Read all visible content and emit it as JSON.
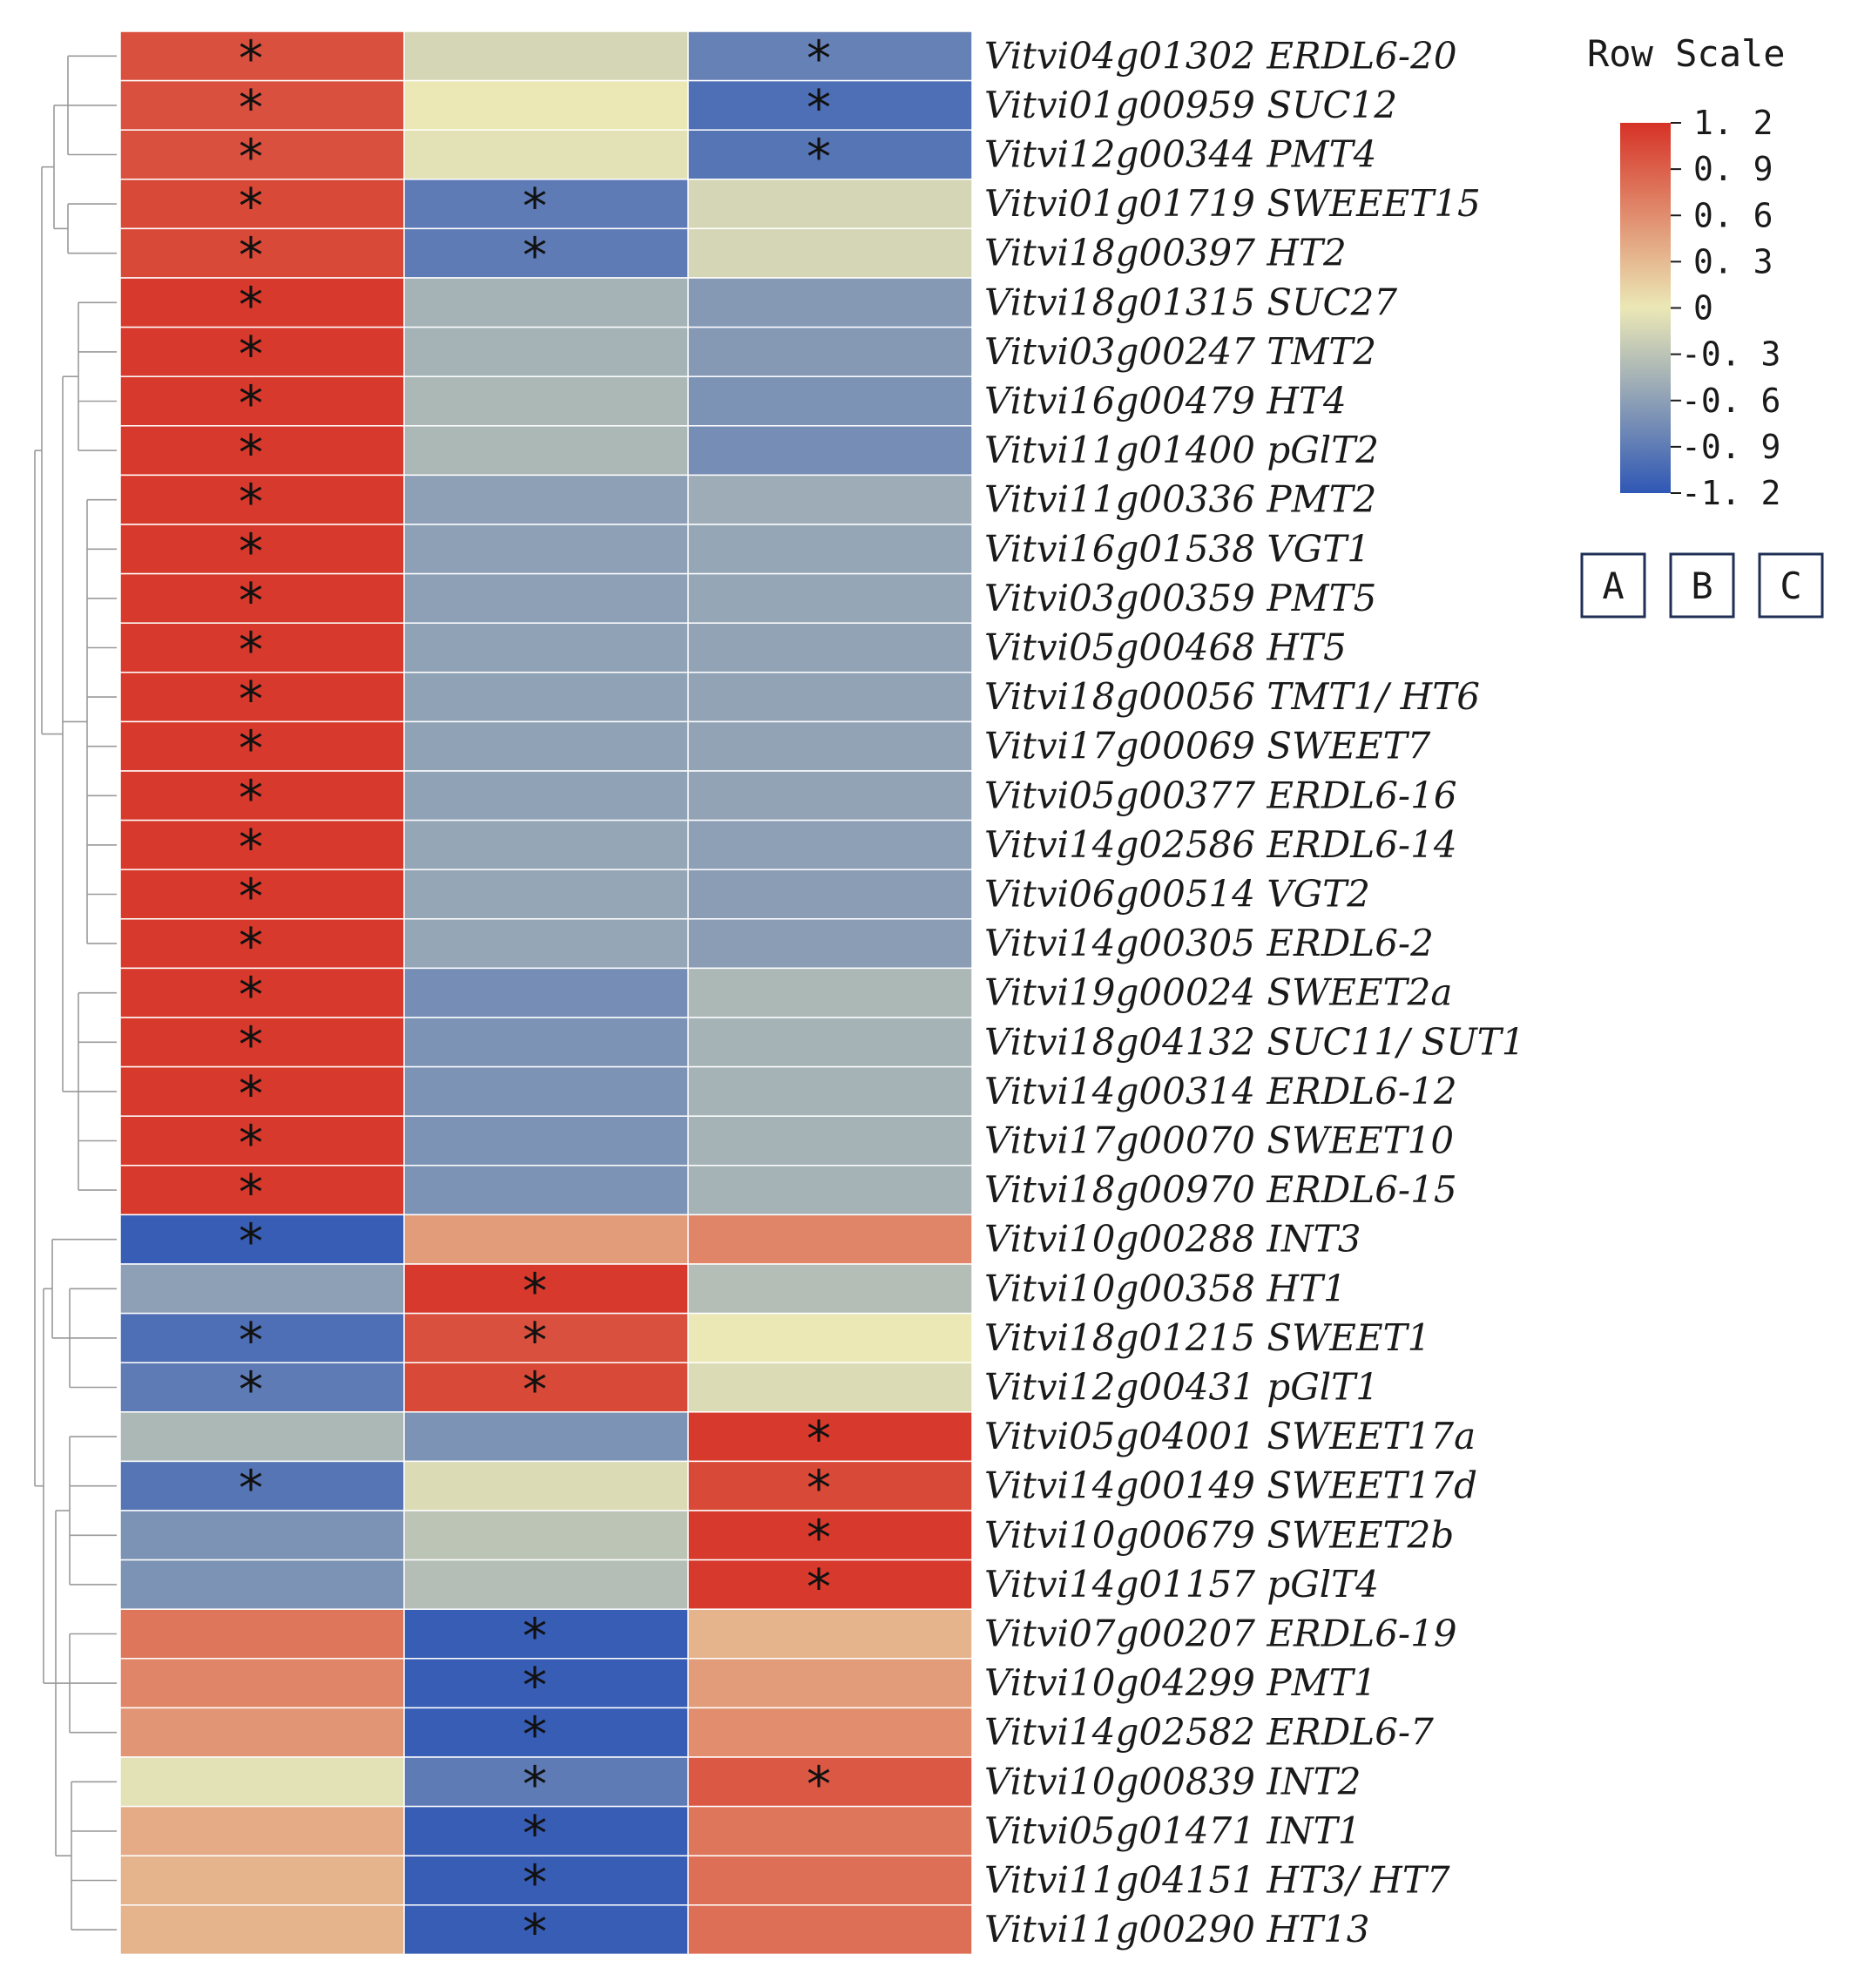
{
  "chart_data": {
    "type": "heatmap",
    "title": "",
    "legend_title": "Row Scale",
    "scale_min": -1.2,
    "scale_max": 1.2,
    "colors": {
      "low": "#2f57b5",
      "mid": "#ebe8b6",
      "high": "#d63226"
    },
    "legend_ticks": [
      "1. 2",
      "0. 9",
      "0. 6",
      "0. 3",
      "0",
      "-0. 3",
      "-0. 6",
      "-0. 9",
      "-1. 2"
    ],
    "legend_tick_values": [
      1.2,
      0.9,
      0.6,
      0.3,
      0,
      -0.3,
      -0.6,
      -0.9,
      -1.2
    ],
    "columns": [
      "A",
      "B",
      "C"
    ],
    "rows": [
      {
        "label": "Vitvi04g01302 ERDL6-20",
        "values": [
          1.0,
          -0.15,
          -0.85
        ],
        "sig": [
          true,
          false,
          true
        ]
      },
      {
        "label": "Vitvi01g00959 SUC12",
        "values": [
          1.0,
          0.0,
          -1.0
        ],
        "sig": [
          true,
          false,
          true
        ]
      },
      {
        "label": "Vitvi12g00344 PMT4",
        "values": [
          1.0,
          -0.05,
          -0.95
        ],
        "sig": [
          true,
          false,
          true
        ]
      },
      {
        "label": "Vitvi01g01719 SWEEET15",
        "values": [
          1.05,
          -0.9,
          -0.15
        ],
        "sig": [
          true,
          true,
          false
        ]
      },
      {
        "label": "Vitvi18g00397 HT2",
        "values": [
          1.05,
          -0.9,
          -0.15
        ],
        "sig": [
          true,
          true,
          false
        ]
      },
      {
        "label": "Vitvi18g01315 SUC27",
        "values": [
          1.15,
          -0.45,
          -0.65
        ],
        "sig": [
          true,
          false,
          false
        ]
      },
      {
        "label": "Vitvi03g00247 TMT2",
        "values": [
          1.15,
          -0.45,
          -0.65
        ],
        "sig": [
          true,
          false,
          false
        ]
      },
      {
        "label": "Vitvi16g00479 HT4",
        "values": [
          1.15,
          -0.4,
          -0.7
        ],
        "sig": [
          true,
          false,
          false
        ]
      },
      {
        "label": "Vitvi11g01400 pGlT2",
        "values": [
          1.15,
          -0.4,
          -0.75
        ],
        "sig": [
          true,
          false,
          false
        ]
      },
      {
        "label": "Vitvi11g00336 PMT2",
        "values": [
          1.15,
          -0.6,
          -0.5
        ],
        "sig": [
          true,
          false,
          false
        ]
      },
      {
        "label": "Vitvi16g01538 VGT1",
        "values": [
          1.15,
          -0.6,
          -0.55
        ],
        "sig": [
          true,
          false,
          false
        ]
      },
      {
        "label": "Vitvi03g00359 PMT5",
        "values": [
          1.15,
          -0.6,
          -0.55
        ],
        "sig": [
          true,
          false,
          false
        ]
      },
      {
        "label": "Vitvi05g00468 HT5",
        "values": [
          1.15,
          -0.58,
          -0.57
        ],
        "sig": [
          true,
          false,
          false
        ]
      },
      {
        "label": "Vitvi18g00056 TMT1/ HT6",
        "values": [
          1.15,
          -0.58,
          -0.57
        ],
        "sig": [
          true,
          false,
          false
        ]
      },
      {
        "label": "Vitvi17g00069 SWEET7",
        "values": [
          1.15,
          -0.58,
          -0.57
        ],
        "sig": [
          true,
          false,
          false
        ]
      },
      {
        "label": "Vitvi05g00377 ERDL6-16",
        "values": [
          1.15,
          -0.58,
          -0.57
        ],
        "sig": [
          true,
          false,
          false
        ]
      },
      {
        "label": "Vitvi14g02586 ERDL6-14",
        "values": [
          1.15,
          -0.55,
          -0.6
        ],
        "sig": [
          true,
          false,
          false
        ]
      },
      {
        "label": "Vitvi06g00514 VGT2",
        "values": [
          1.15,
          -0.55,
          -0.62
        ],
        "sig": [
          true,
          false,
          false
        ]
      },
      {
        "label": "Vitvi14g00305 ERDL6-2",
        "values": [
          1.15,
          -0.55,
          -0.62
        ],
        "sig": [
          true,
          false,
          false
        ]
      },
      {
        "label": "Vitvi19g00024 SWEET2a",
        "values": [
          1.15,
          -0.75,
          -0.4
        ],
        "sig": [
          true,
          false,
          false
        ]
      },
      {
        "label": "Vitvi18g04132 SUC11/ SUT1",
        "values": [
          1.15,
          -0.7,
          -0.45
        ],
        "sig": [
          true,
          false,
          false
        ]
      },
      {
        "label": "Vitvi14g00314 ERDL6-12",
        "values": [
          1.15,
          -0.7,
          -0.45
        ],
        "sig": [
          true,
          false,
          false
        ]
      },
      {
        "label": "Vitvi17g00070 SWEET10",
        "values": [
          1.15,
          -0.7,
          -0.45
        ],
        "sig": [
          true,
          false,
          false
        ]
      },
      {
        "label": "Vitvi18g00970 ERDL6-15",
        "values": [
          1.15,
          -0.7,
          -0.45
        ],
        "sig": [
          true,
          false,
          false
        ]
      },
      {
        "label": "Vitvi10g00288 INT3",
        "values": [
          -1.15,
          0.5,
          0.65
        ],
        "sig": [
          true,
          false,
          false
        ]
      },
      {
        "label": "Vitvi10g00358 HT1",
        "values": [
          -0.6,
          1.15,
          -0.35
        ],
        "sig": [
          false,
          true,
          false
        ]
      },
      {
        "label": "Vitvi18g01215 SWEET1",
        "values": [
          -1.0,
          1.0,
          0.0
        ],
        "sig": [
          true,
          true,
          false
        ]
      },
      {
        "label": "Vitvi12g00431 pGlT1",
        "values": [
          -0.9,
          1.05,
          -0.1
        ],
        "sig": [
          true,
          true,
          false
        ]
      },
      {
        "label": "Vitvi05g04001 SWEET17a",
        "values": [
          -0.4,
          -0.7,
          1.15
        ],
        "sig": [
          false,
          false,
          true
        ]
      },
      {
        "label": "Vitvi14g00149 SWEET17d",
        "values": [
          -0.95,
          -0.1,
          1.05
        ],
        "sig": [
          true,
          false,
          true
        ]
      },
      {
        "label": "Vitvi10g00679 SWEET2b",
        "values": [
          -0.7,
          -0.3,
          1.15
        ],
        "sig": [
          false,
          false,
          true
        ]
      },
      {
        "label": "Vitvi14g01157 pGlT4",
        "values": [
          -0.7,
          -0.35,
          1.15
        ],
        "sig": [
          false,
          false,
          true
        ]
      },
      {
        "label": "Vitvi07g00207 ERDL6-19",
        "values": [
          0.75,
          -1.15,
          0.35
        ],
        "sig": [
          false,
          true,
          false
        ]
      },
      {
        "label": "Vitvi10g04299 PMT1",
        "values": [
          0.65,
          -1.15,
          0.5
        ],
        "sig": [
          false,
          true,
          false
        ]
      },
      {
        "label": "Vitvi14g02582 ERDL6-7",
        "values": [
          0.55,
          -1.15,
          0.6
        ],
        "sig": [
          false,
          true,
          false
        ]
      },
      {
        "label": "Vitvi10g00839 INT2",
        "values": [
          -0.05,
          -0.9,
          0.95
        ],
        "sig": [
          false,
          true,
          true
        ]
      },
      {
        "label": "Vitvi05g01471 INT1",
        "values": [
          0.4,
          -1.15,
          0.75
        ],
        "sig": [
          false,
          true,
          false
        ]
      },
      {
        "label": "Vitvi11g04151 HT3/ HT7",
        "values": [
          0.35,
          -1.15,
          0.8
        ],
        "sig": [
          false,
          true,
          false
        ]
      },
      {
        "label": "Vitvi11g00290 HT13",
        "values": [
          0.35,
          -1.15,
          0.8
        ],
        "sig": [
          false,
          true,
          false
        ]
      }
    ],
    "sig_marker": "*",
    "dendrogram": {
      "groups": [
        [
          0,
          1,
          2
        ],
        [
          3,
          4
        ],
        [
          5,
          6,
          7,
          8
        ],
        [
          9,
          10,
          11,
          12,
          13,
          14,
          15,
          16,
          17,
          18
        ],
        [
          19,
          20,
          21,
          22,
          23
        ],
        [
          24
        ],
        [
          25,
          26,
          27
        ],
        [
          28,
          29,
          30,
          31
        ],
        [
          32,
          33,
          34
        ],
        [
          35,
          36,
          37,
          38
        ]
      ]
    }
  }
}
